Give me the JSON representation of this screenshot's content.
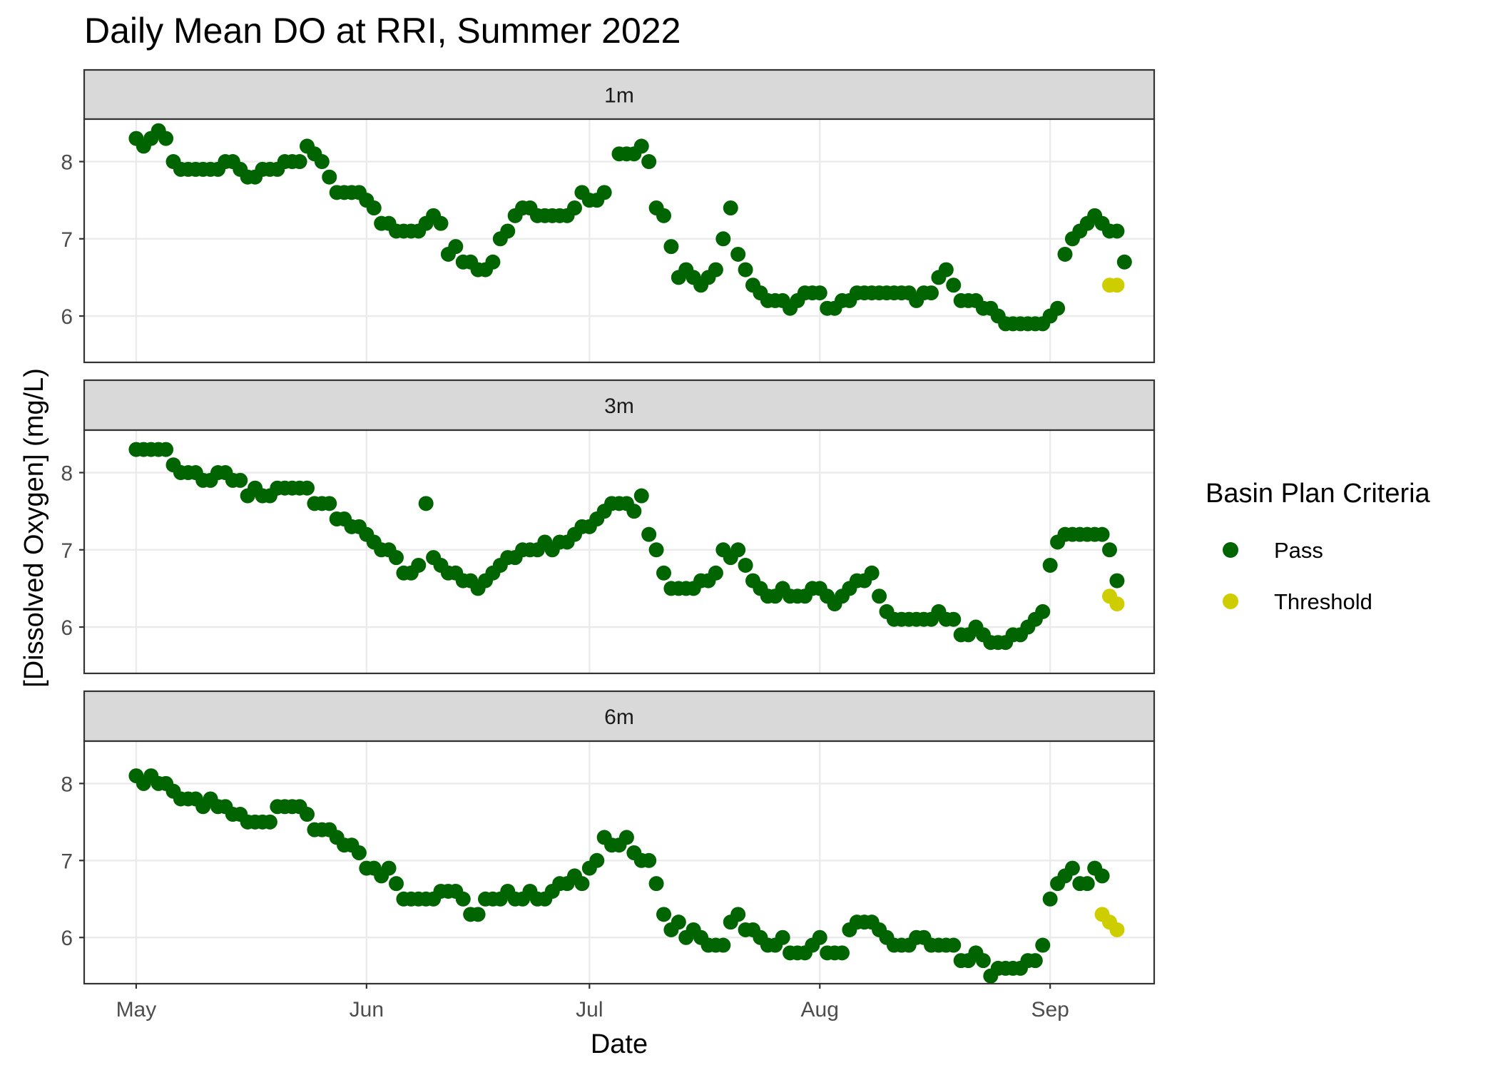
{
  "chart_data": {
    "type": "scatter",
    "title": "Daily Mean DO at RRI, Summer 2022",
    "xlabel": "Date",
    "ylabel": "[Dissolved Oxygen] (mg/L)",
    "x_range": [
      "2022-04-24",
      "2022-09-15"
    ],
    "y_range": [
      5.4,
      8.55
    ],
    "x_ticks": [
      {
        "date": "2022-05-01",
        "label": "May"
      },
      {
        "date": "2022-06-01",
        "label": "Jun"
      },
      {
        "date": "2022-07-01",
        "label": "Jul"
      },
      {
        "date": "2022-08-01",
        "label": "Aug"
      },
      {
        "date": "2022-09-01",
        "label": "Sep"
      }
    ],
    "y_ticks": [
      6,
      7,
      8
    ],
    "grid": true,
    "legend": {
      "title": "Basin Plan Criteria",
      "position": "right",
      "entries": [
        {
          "name": "Pass",
          "color": "#006400"
        },
        {
          "name": "Threshold",
          "color": "#cdcd00"
        }
      ]
    },
    "panels": [
      {
        "label": "1m",
        "series": [
          {
            "name": "Pass",
            "start_date": "2022-05-01",
            "values": [
              8.3,
              8.2,
              8.3,
              8.4,
              8.3,
              8.0,
              7.9,
              7.9,
              7.9,
              7.9,
              7.9,
              7.9,
              8.0,
              8.0,
              7.9,
              7.8,
              7.8,
              7.9,
              7.9,
              7.9,
              8.0,
              8.0,
              8.0,
              8.2,
              8.1,
              8.0,
              7.8,
              7.6,
              7.6,
              7.6,
              7.6,
              7.5,
              7.4,
              7.2,
              7.2,
              7.1,
              7.1,
              7.1,
              7.1,
              7.2,
              7.3,
              7.2,
              6.8,
              6.9,
              6.7,
              6.7,
              6.6,
              6.6,
              6.7,
              7.0,
              7.1,
              7.3,
              7.4,
              7.4,
              7.3,
              7.3,
              7.3,
              7.3,
              7.3,
              7.4,
              7.6,
              7.5,
              7.5,
              7.6,
              null,
              8.1,
              8.1,
              8.1,
              8.2,
              8.0,
              7.4,
              7.3,
              6.9,
              6.5,
              6.6,
              6.5,
              6.4,
              6.5,
              6.6,
              7.0,
              7.4,
              6.8,
              6.6,
              6.4,
              6.3,
              6.2,
              6.2,
              6.2,
              6.1,
              6.2,
              6.3,
              6.3,
              6.3,
              6.1,
              6.1,
              6.2,
              6.2,
              6.3,
              6.3,
              6.3,
              6.3,
              6.3,
              6.3,
              6.3,
              6.3,
              6.2,
              6.3,
              6.3,
              6.5,
              6.6,
              6.4,
              6.2,
              6.2,
              6.2,
              6.1,
              6.1,
              6.0,
              5.9,
              5.9,
              5.9,
              5.9,
              5.9,
              5.9,
              6.0,
              6.1,
              6.8,
              7.0,
              7.1,
              7.2,
              7.3,
              7.2,
              7.1,
              7.1,
              6.7
            ]
          },
          {
            "name": "Threshold",
            "x": [
              "2022-09-09",
              "2022-09-10"
            ],
            "y": [
              6.4,
              6.4
            ]
          }
        ]
      },
      {
        "label": "3m",
        "series": [
          {
            "name": "Pass",
            "start_date": "2022-05-01",
            "values": [
              8.3,
              8.3,
              8.3,
              8.3,
              8.3,
              8.1,
              8.0,
              8.0,
              8.0,
              7.9,
              7.9,
              8.0,
              8.0,
              7.9,
              7.9,
              7.7,
              7.8,
              7.7,
              7.7,
              7.8,
              7.8,
              7.8,
              7.8,
              7.8,
              7.6,
              7.6,
              7.6,
              7.4,
              7.4,
              7.3,
              7.3,
              7.2,
              7.1,
              7.0,
              7.0,
              6.9,
              6.7,
              6.7,
              6.8,
              7.6,
              6.9,
              6.8,
              6.7,
              6.7,
              6.6,
              6.6,
              6.5,
              6.6,
              6.7,
              6.8,
              6.9,
              6.9,
              7.0,
              7.0,
              7.0,
              7.1,
              7.0,
              7.1,
              7.1,
              7.2,
              7.3,
              7.3,
              7.4,
              7.5,
              7.6,
              7.6,
              7.6,
              7.5,
              7.7,
              7.2,
              7.0,
              6.7,
              6.5,
              6.5,
              6.5,
              6.5,
              6.6,
              6.6,
              6.7,
              7.0,
              6.9,
              7.0,
              6.8,
              6.6,
              6.5,
              6.4,
              6.4,
              6.5,
              6.4,
              6.4,
              6.4,
              6.5,
              6.5,
              6.4,
              6.3,
              6.4,
              6.5,
              6.6,
              6.6,
              6.7,
              6.4,
              6.2,
              6.1,
              6.1,
              6.1,
              6.1,
              6.1,
              6.1,
              6.2,
              6.1,
              6.1,
              5.9,
              5.9,
              6.0,
              5.9,
              5.8,
              5.8,
              5.8,
              5.9,
              5.9,
              6.0,
              6.1,
              6.2,
              6.8,
              7.1,
              7.2,
              7.2,
              7.2,
              7.2,
              7.2,
              7.2,
              7.0,
              6.6
            ]
          },
          {
            "name": "Threshold",
            "x": [
              "2022-09-09",
              "2022-09-10"
            ],
            "y": [
              6.4,
              6.3
            ]
          }
        ]
      },
      {
        "label": "6m",
        "series": [
          {
            "name": "Pass",
            "start_date": "2022-05-01",
            "values": [
              8.1,
              8.0,
              8.1,
              8.0,
              8.0,
              7.9,
              7.8,
              7.8,
              7.8,
              7.7,
              7.8,
              7.7,
              7.7,
              7.6,
              7.6,
              7.5,
              7.5,
              7.5,
              7.5,
              7.7,
              7.7,
              7.7,
              7.7,
              7.6,
              7.4,
              7.4,
              7.4,
              7.3,
              7.2,
              7.2,
              7.1,
              6.9,
              6.9,
              6.8,
              6.9,
              6.7,
              6.5,
              6.5,
              6.5,
              6.5,
              6.5,
              6.6,
              6.6,
              6.6,
              6.5,
              6.3,
              6.3,
              6.5,
              6.5,
              6.5,
              6.6,
              6.5,
              6.5,
              6.6,
              6.5,
              6.5,
              6.6,
              6.7,
              6.7,
              6.8,
              6.7,
              6.9,
              7.0,
              7.3,
              7.2,
              7.2,
              7.3,
              7.1,
              7.0,
              7.0,
              6.7,
              6.3,
              6.1,
              6.2,
              6.0,
              6.1,
              6.0,
              5.9,
              5.9,
              5.9,
              6.2,
              6.3,
              6.1,
              6.1,
              6.0,
              5.9,
              5.9,
              6.0,
              5.8,
              5.8,
              5.8,
              5.9,
              6.0,
              5.8,
              5.8,
              5.8,
              6.1,
              6.2,
              6.2,
              6.2,
              6.1,
              6.0,
              5.9,
              5.9,
              5.9,
              6.0,
              6.0,
              5.9,
              5.9,
              5.9,
              5.9,
              5.7,
              5.7,
              5.8,
              5.7,
              5.5,
              5.6,
              5.6,
              5.6,
              5.6,
              5.7,
              5.7,
              5.9,
              6.5,
              6.7,
              6.8,
              6.9,
              6.7,
              6.7,
              6.9,
              6.8
            ]
          },
          {
            "name": "Threshold",
            "x": [
              "2022-09-08",
              "2022-09-09",
              "2022-09-10"
            ],
            "y": [
              6.3,
              6.2,
              6.1
            ]
          }
        ]
      }
    ]
  }
}
